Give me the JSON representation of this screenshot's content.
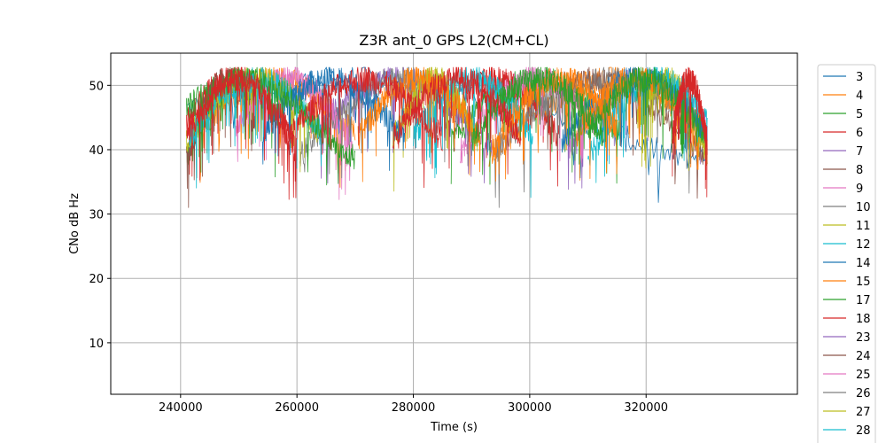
{
  "chart_data": {
    "type": "line",
    "title": "Z3R ant_0 GPS L2(CM+CL)",
    "xlabel": "Time (s)",
    "ylabel": "CNo dB Hz",
    "xlim": [
      228000,
      346000
    ],
    "ylim": [
      2,
      55
    ],
    "xticks": [
      240000,
      260000,
      280000,
      300000,
      320000
    ],
    "yticks": [
      10,
      20,
      30,
      40,
      50
    ],
    "grid": true,
    "legend_position": "outside-right",
    "series": [
      {
        "name": "3",
        "color": "#1f77b4",
        "segments": [
          [
            241000,
            330500,
            0.7,
            0.55
          ]
        ]
      },
      {
        "name": "4",
        "color": "#ff7f0e",
        "segments": [
          [
            241500,
            270000,
            0.2,
            0.55
          ],
          [
            293000,
            330000,
            0.0,
            0.5
          ]
        ]
      },
      {
        "name": "5",
        "color": "#2ca02c",
        "segments": [
          [
            241000,
            256500,
            0.0,
            0.55
          ],
          [
            286500,
            315500,
            0.2,
            0.5
          ]
        ]
      },
      {
        "name": "6",
        "color": "#d62728",
        "segments": [
          [
            241000,
            260000,
            0.45,
            0.6
          ],
          [
            283000,
            305000,
            0.25,
            0.5
          ]
        ]
      },
      {
        "name": "7",
        "color": "#9467bd",
        "segments": [
          [
            263500,
            293500,
            0.4,
            0.6
          ],
          [
            306500,
            330500,
            0.1,
            0.5
          ]
        ]
      },
      {
        "name": "8",
        "color": "#8c564b",
        "segments": [
          [
            241000,
            253000,
            0.0,
            0.55
          ],
          [
            296500,
            330500,
            0.55,
            0.45
          ]
        ]
      },
      {
        "name": "9",
        "color": "#e377c2",
        "segments": [
          [
            249500,
            269500,
            0.35,
            0.4
          ],
          [
            288000,
            311000,
            0.05,
            0.55
          ]
        ]
      },
      {
        "name": "10",
        "color": "#7f7f7f",
        "segments": [
          [
            260500,
            290000,
            0.0,
            0.5
          ],
          [
            294000,
            327500,
            0.05,
            0.4
          ]
        ]
      },
      {
        "name": "11",
        "color": "#bcbd22",
        "segments": [
          [
            241000,
            264000,
            0.2,
            0.6
          ],
          [
            276500,
            291000,
            0.25,
            0.45
          ],
          [
            318500,
            330500,
            0.5,
            0.45
          ]
        ]
      },
      {
        "name": "12",
        "color": "#17becf",
        "segments": [
          [
            241500,
            264500,
            0.25,
            0.55
          ],
          [
            280000,
            300500,
            0.25,
            0.5
          ],
          [
            310000,
            330500,
            0.0,
            0.5
          ]
        ]
      },
      {
        "name": "14",
        "color": "#1f77b4",
        "segments": [
          [
            254000,
            278500,
            0.3,
            0.55
          ],
          [
            305500,
            330500,
            0.2,
            0.6
          ]
        ]
      },
      {
        "name": "15",
        "color": "#ff7f0e",
        "segments": [
          [
            270500,
            291500,
            0.25,
            0.45
          ],
          [
            293500,
            315000,
            0.1,
            0.55
          ],
          [
            308000,
            329000,
            0.3,
            0.5
          ]
        ]
      },
      {
        "name": "17",
        "color": "#2ca02c",
        "segments": [
          [
            241000,
            270000,
            0.7,
            0.55
          ],
          [
            290000,
            312500,
            0.2,
            0.5
          ],
          [
            310000,
            330500,
            0.3,
            0.6
          ]
        ]
      },
      {
        "name": "18",
        "color": "#d62728",
        "segments": [
          [
            241000,
            259500,
            0.3,
            0.55
          ],
          [
            259000,
            285000,
            0.3,
            0.55
          ],
          [
            276500,
            298500,
            0.25,
            0.5
          ],
          [
            324500,
            330500,
            0.3,
            0.6
          ]
        ]
      },
      {
        "name": "23",
        "color": "#9467bd",
        "segments": []
      },
      {
        "name": "24",
        "color": "#8c564b",
        "segments": []
      },
      {
        "name": "25",
        "color": "#e377c2",
        "segments": []
      },
      {
        "name": "26",
        "color": "#7f7f7f",
        "segments": []
      },
      {
        "name": "27",
        "color": "#bcbd22",
        "segments": []
      },
      {
        "name": "28",
        "color": "#17becf",
        "segments": []
      }
    ]
  }
}
